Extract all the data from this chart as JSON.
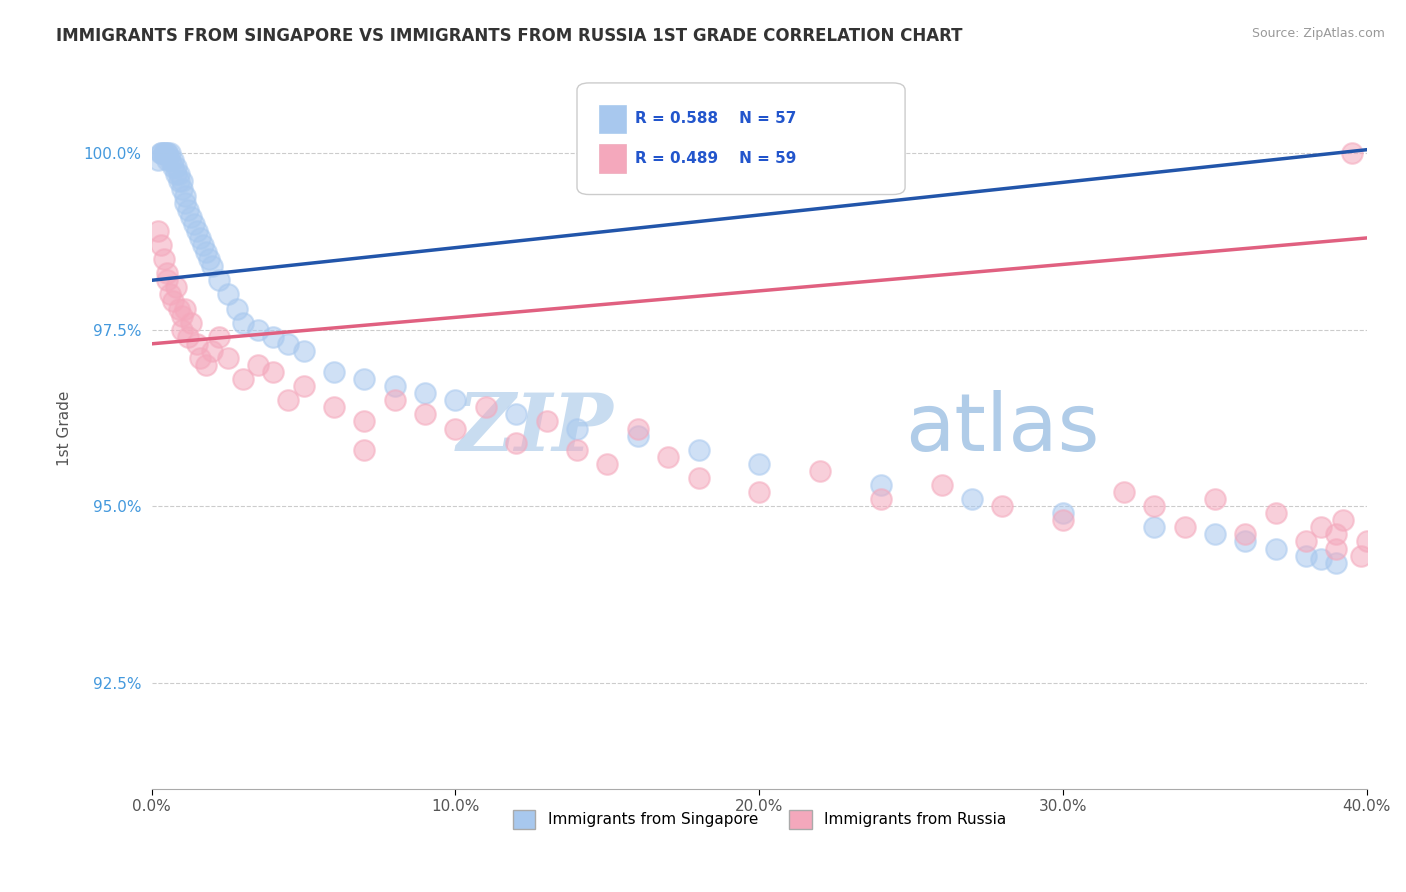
{
  "title": "IMMIGRANTS FROM SINGAPORE VS IMMIGRANTS FROM RUSSIA 1ST GRADE CORRELATION CHART",
  "source": "Source: ZipAtlas.com",
  "ylabel": "1st Grade",
  "legend_label_1": "Immigrants from Singapore",
  "legend_label_2": "Immigrants from Russia",
  "R1": 0.588,
  "N1": 57,
  "R2": 0.489,
  "N2": 59,
  "color1": "#A8C8EE",
  "color2": "#F4A8BC",
  "trendline1_color": "#2255AA",
  "trendline2_color": "#E06080",
  "xmin": 0.0,
  "xmax": 40.0,
  "ymin": 91.0,
  "ymax": 101.2,
  "yticks": [
    92.5,
    95.0,
    97.5,
    100.0
  ],
  "xticks": [
    0,
    10,
    20,
    30,
    40
  ],
  "xtick_labels": [
    "0.0%",
    "10.0%",
    "20.0%",
    "30.0%",
    "40.0%"
  ],
  "ytick_labels": [
    "92.5%",
    "95.0%",
    "97.5%",
    "100.0%"
  ],
  "background_color": "#FFFFFF",
  "grid_color": "#CCCCCC",
  "title_color": "#333333",
  "source_color": "#999999",
  "watermark_zip": "ZIP",
  "watermark_atlas": "atlas",
  "watermark_color_zip": "#C8DCF0",
  "watermark_color_atlas": "#B0CCE8",
  "sg_x": [
    0.2,
    0.3,
    0.3,
    0.4,
    0.4,
    0.5,
    0.5,
    0.5,
    0.6,
    0.6,
    0.7,
    0.7,
    0.8,
    0.8,
    0.9,
    0.9,
    1.0,
    1.0,
    1.1,
    1.1,
    1.2,
    1.3,
    1.4,
    1.5,
    1.6,
    1.7,
    1.8,
    1.9,
    2.0,
    2.2,
    2.5,
    2.8,
    3.0,
    3.5,
    4.0,
    4.5,
    5.0,
    6.0,
    7.0,
    8.0,
    9.0,
    10.0,
    12.0,
    14.0,
    16.0,
    18.0,
    20.0,
    24.0,
    27.0,
    30.0,
    33.0,
    35.0,
    36.0,
    37.0,
    38.0,
    38.5,
    39.0
  ],
  "sg_y": [
    99.9,
    100.0,
    100.0,
    100.0,
    100.0,
    100.0,
    100.0,
    99.9,
    99.9,
    100.0,
    99.8,
    99.9,
    99.7,
    99.8,
    99.6,
    99.7,
    99.5,
    99.6,
    99.4,
    99.3,
    99.2,
    99.1,
    99.0,
    98.9,
    98.8,
    98.7,
    98.6,
    98.5,
    98.4,
    98.2,
    98.0,
    97.8,
    97.6,
    97.5,
    97.4,
    97.3,
    97.2,
    96.9,
    96.8,
    96.7,
    96.6,
    96.5,
    96.3,
    96.1,
    96.0,
    95.8,
    95.6,
    95.3,
    95.1,
    94.9,
    94.7,
    94.6,
    94.5,
    94.4,
    94.3,
    94.25,
    94.2
  ],
  "ru_x": [
    0.2,
    0.3,
    0.4,
    0.5,
    0.5,
    0.6,
    0.7,
    0.8,
    0.9,
    1.0,
    1.0,
    1.1,
    1.2,
    1.3,
    1.5,
    1.6,
    1.8,
    2.0,
    2.2,
    2.5,
    3.0,
    3.5,
    4.0,
    4.5,
    5.0,
    6.0,
    7.0,
    8.0,
    9.0,
    10.0,
    11.0,
    12.0,
    13.0,
    14.0,
    15.0,
    16.0,
    17.0,
    18.0,
    20.0,
    22.0,
    24.0,
    26.0,
    28.0,
    30.0,
    32.0,
    33.0,
    34.0,
    35.0,
    36.0,
    37.0,
    38.0,
    38.5,
    39.0,
    39.0,
    39.2,
    39.5,
    39.8,
    40.0,
    7.0
  ],
  "ru_y": [
    98.9,
    98.7,
    98.5,
    98.3,
    98.2,
    98.0,
    97.9,
    98.1,
    97.8,
    97.7,
    97.5,
    97.8,
    97.4,
    97.6,
    97.3,
    97.1,
    97.0,
    97.2,
    97.4,
    97.1,
    96.8,
    97.0,
    96.9,
    96.5,
    96.7,
    96.4,
    96.2,
    96.5,
    96.3,
    96.1,
    96.4,
    95.9,
    96.2,
    95.8,
    95.6,
    96.1,
    95.7,
    95.4,
    95.2,
    95.5,
    95.1,
    95.3,
    95.0,
    94.8,
    95.2,
    95.0,
    94.7,
    95.1,
    94.6,
    94.9,
    94.5,
    94.7,
    94.4,
    94.6,
    94.8,
    100.0,
    94.3,
    94.5,
    95.8
  ],
  "trendline1_x0": 0.0,
  "trendline1_y0": 98.2,
  "trendline1_x1": 40.0,
  "trendline1_y1": 100.05,
  "trendline2_x0": 0.0,
  "trendline2_y0": 97.3,
  "trendline2_x1": 40.0,
  "trendline2_y1": 98.8
}
